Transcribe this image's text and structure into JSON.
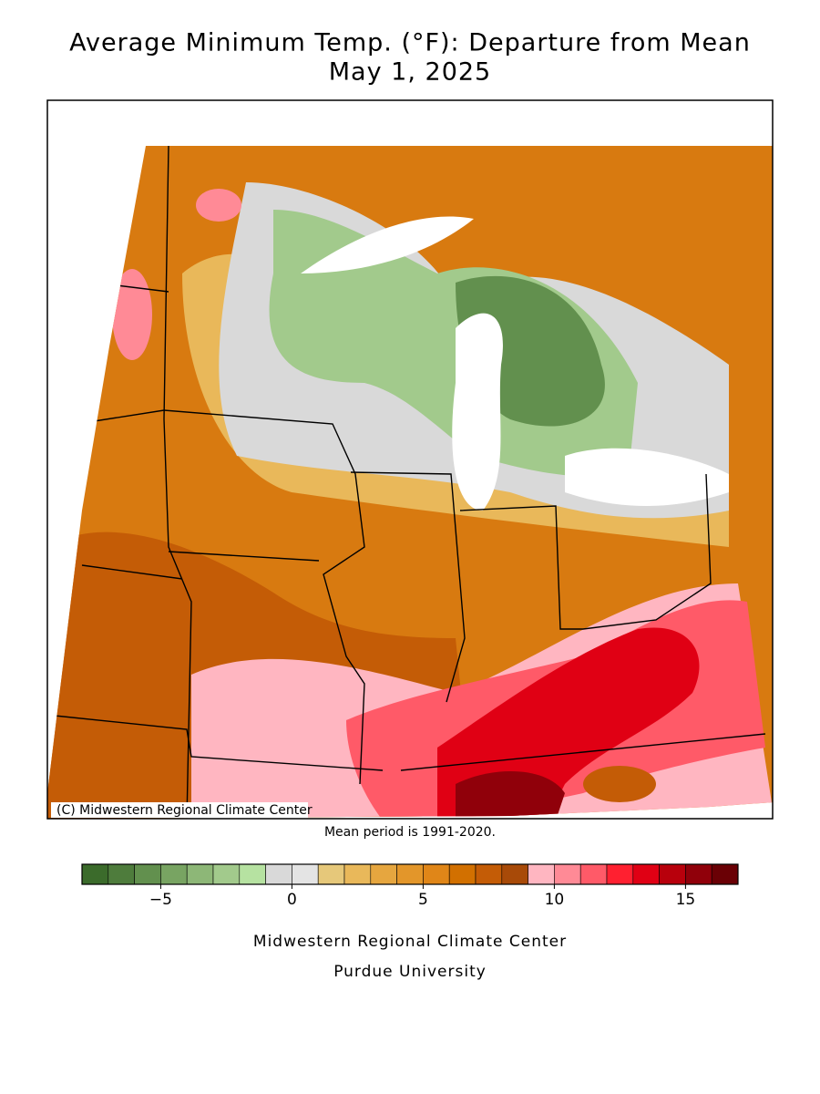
{
  "header": {
    "title": "Average Minimum Temp. (°F): Departure from Mean",
    "subtitle": "May 1, 2025"
  },
  "map": {
    "credit": "(C) Midwestern Regional Climate Center",
    "note": "Mean period is 1991-2020."
  },
  "colorbar": {
    "lim": [
      -8,
      17
    ],
    "colors": [
      "#3b6b2b",
      "#4e7c3c",
      "#62904e",
      "#78a462",
      "#8db777",
      "#a2ca8c",
      "#b6e2a1",
      "#d9d9d9",
      "#e4e4e4",
      "#e6c87a",
      "#e9b85a",
      "#e6a63f",
      "#e3962a",
      "#e08618",
      "#d27000",
      "#c45c06",
      "#a84a08",
      "#ffb6c1",
      "#ff8a96",
      "#ff5a68",
      "#ff2030",
      "#e00014",
      "#b8000c",
      "#90000a",
      "#6a0005"
    ],
    "ticks": [
      {
        "value": -5,
        "label": "−5"
      },
      0,
      5,
      10,
      15
    ]
  },
  "footer": {
    "line1": "Midwestern Regional Climate Center",
    "line2": "Purdue University"
  }
}
